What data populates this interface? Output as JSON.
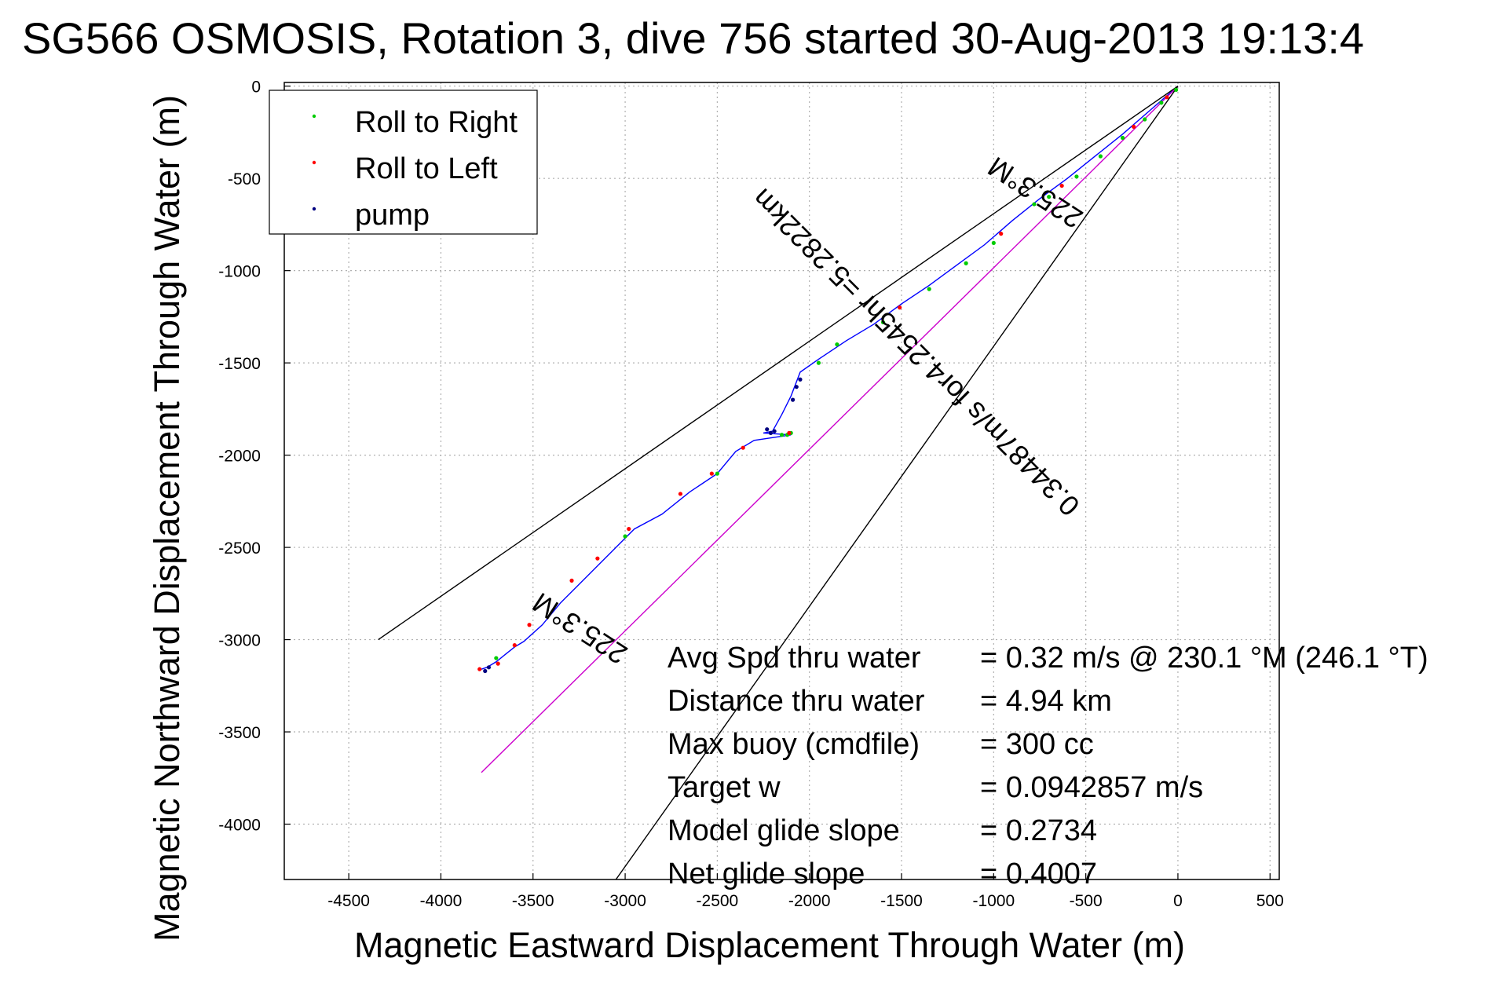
{
  "chart_data": {
    "type": "line",
    "title": "SG566 OSMOSIS, Rotation 3, dive 756 started 30-Aug-2013 19:13:4",
    "xlabel": "Magnetic Eastward Displacement Through Water (m)",
    "ylabel": "Magnetic Northward Displacement Through Water (m)",
    "xlim": [
      -4850,
      550
    ],
    "ylim": [
      -4300,
      20
    ],
    "xticks": [
      -4500,
      -4000,
      -3500,
      -3000,
      -2500,
      -2000,
      -1500,
      -1000,
      -500,
      0,
      500
    ],
    "yticks": [
      0,
      -500,
      -1000,
      -1500,
      -2000,
      -2500,
      -3000,
      -3500,
      -4000
    ],
    "grid": true,
    "legend_position": "top-left",
    "legend": [
      {
        "label": "Roll to Right",
        "color": "#00cc00"
      },
      {
        "label": "Roll to Left",
        "color": "#ff0000"
      },
      {
        "label": "pump",
        "color": "#000080"
      }
    ],
    "series": [
      {
        "color": "#0000ff",
        "x": [
          0,
          -150,
          -300,
          -450,
          -600,
          -750,
          -900,
          -1050,
          -1200,
          -1350,
          -1500,
          -1650,
          -1800,
          -1950,
          -2050,
          -2100,
          -2150,
          -2200,
          -2250,
          -2100,
          -2300,
          -2400,
          -2500,
          -2650,
          -2800,
          -2950,
          -3050,
          -3150,
          -3250,
          -3350,
          -3450,
          -3550,
          -3600,
          -3650,
          -3700,
          -3750,
          -3780
        ],
        "y": [
          0,
          -130,
          -260,
          -380,
          -500,
          -610,
          -730,
          -860,
          -970,
          -1080,
          -1180,
          -1290,
          -1380,
          -1480,
          -1550,
          -1680,
          -1780,
          -1870,
          -1880,
          -1890,
          -1920,
          -1980,
          -2100,
          -2200,
          -2320,
          -2400,
          -2500,
          -2600,
          -2700,
          -2800,
          -2920,
          -3010,
          -3040,
          -3080,
          -3120,
          -3150,
          -3160
        ]
      },
      {
        "color": "#cc00cc",
        "x": [
          0,
          -3780
        ],
        "y": [
          0,
          -3720
        ]
      },
      {
        "color": "#000000",
        "x": [
          0,
          -4340
        ],
        "y": [
          0,
          -3000
        ]
      },
      {
        "color": "#000000",
        "x": [
          0,
          -3050
        ],
        "y": [
          0,
          -4300
        ]
      }
    ],
    "markers": {
      "roll_right": {
        "color": "#00cc00",
        "x": [
          -10,
          -90,
          -180,
          -300,
          -420,
          -550,
          -700,
          -780,
          -1000,
          -1150,
          -1350,
          -1600,
          -1850,
          -1950,
          -2100,
          -2120,
          -2150,
          -2500,
          -3000,
          -3700
        ],
        "y": [
          -20,
          -90,
          -180,
          -280,
          -380,
          -490,
          -600,
          -640,
          -850,
          -960,
          -1100,
          -1280,
          -1400,
          -1500,
          -1880,
          -1890,
          -1890,
          -2100,
          -2440,
          -3100
        ]
      },
      "roll_left": {
        "color": "#ff0000",
        "x": [
          -60,
          -240,
          -630,
          -960,
          -1510,
          -2110,
          -2360,
          -2530,
          -2700,
          -2980,
          -3150,
          -3290,
          -3520,
          -3600,
          -3690,
          -3790
        ],
        "y": [
          -60,
          -220,
          -540,
          -800,
          -1200,
          -1880,
          -1960,
          -2100,
          -2210,
          -2400,
          -2560,
          -2680,
          -2920,
          -3030,
          -3130,
          -3160
        ]
      },
      "pump": {
        "color": "#000080",
        "x": [
          -2050,
          -2070,
          -2090,
          -2230,
          -2210,
          -2190,
          -3740,
          -3760
        ],
        "y": [
          -1590,
          -1630,
          -1700,
          -1860,
          -1880,
          -1870,
          -3150,
          -3170
        ]
      }
    },
    "annotations": [
      {
        "text": "225.3°M"
      },
      {
        "text": "0.34487m/s for4.2545hr =5.2822km"
      },
      {
        "text": "225.3°M"
      }
    ],
    "stats": [
      {
        "label": "Avg Spd thru water",
        "value": "=  0.32 m/s @ 230.1  °M (246.1  °T)"
      },
      {
        "label": "Distance thru water",
        "value": "=  4.94 km"
      },
      {
        "label": "Max buoy (cmdfile)",
        "value": "= 300 cc"
      },
      {
        "label": "Target w",
        "value": "= 0.0942857 m/s"
      },
      {
        "label": "Model glide slope",
        "value": "= 0.2734"
      },
      {
        "label": "Net glide slope",
        "value": "= 0.4007"
      }
    ]
  }
}
